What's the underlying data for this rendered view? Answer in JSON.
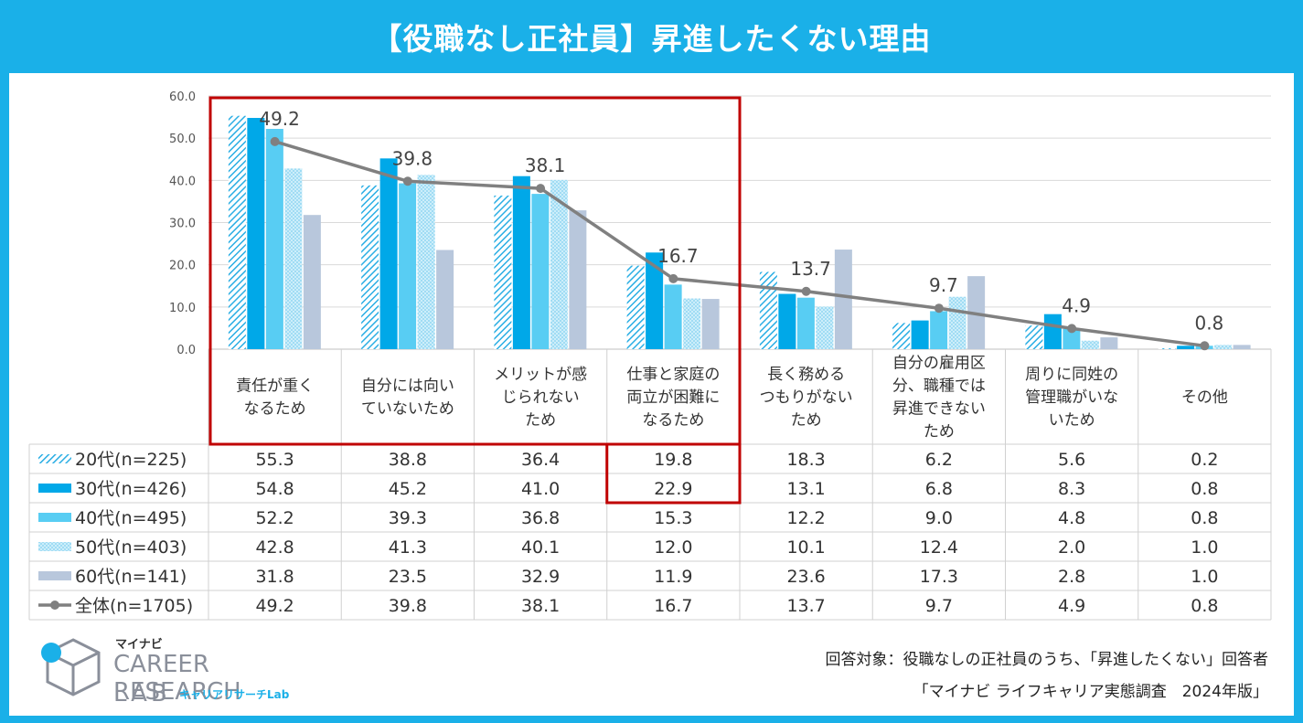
{
  "title": "【役職なし正社員】昇進したくない理由",
  "footnote_1": "回答対象：役職なしの正社員のうち、「昇進したくない」回答者",
  "footnote_2": "「マイナビ ライフキャリア実態調査　2024年版」",
  "logo": {
    "brand": "マイナビ",
    "line1": "CAREER RESEARCH",
    "line2": "LAB",
    "sub": "キャリアリサーチLab"
  },
  "colors": {
    "header": "#1ab0e8",
    "s20": "#3fb7e6",
    "s30": "#00a8e8",
    "s40": "#58cdf3",
    "s50": "#a9ddf3",
    "s60": "#b8c7dc",
    "total": "#808080",
    "highlight": "#c00000",
    "grid": "#d9d9d9"
  },
  "chart_data": {
    "type": "bar",
    "title": "【役職なし正社員】昇進したくない理由",
    "ylim": [
      0,
      60
    ],
    "yticks": [
      "0.0",
      "10.0",
      "20.0",
      "30.0",
      "40.0",
      "50.0",
      "60.0"
    ],
    "categories": [
      [
        "責任が重く",
        "なるため"
      ],
      [
        "自分には向い",
        "ていないため"
      ],
      [
        "メリットが感",
        "じられない",
        "ため"
      ],
      [
        "仕事と家庭の",
        "両立が困難に",
        "なるため"
      ],
      [
        "長く務める",
        "つもりがない",
        "ため"
      ],
      [
        "自分の雇用区",
        "分、職種では",
        "昇進できない",
        "ため"
      ],
      [
        "周りに同姓の",
        "管理職がいな",
        "いため"
      ],
      [
        "その他"
      ]
    ],
    "series": [
      {
        "name": "20代(n=225)",
        "type": "bar",
        "pattern": "hatch",
        "values": [
          55.3,
          38.8,
          36.4,
          19.8,
          18.3,
          6.2,
          5.6,
          0.2
        ]
      },
      {
        "name": "30代(n=426)",
        "type": "bar",
        "pattern": "solid",
        "values": [
          54.8,
          45.2,
          41.0,
          22.9,
          13.1,
          6.8,
          8.3,
          0.8
        ]
      },
      {
        "name": "40代(n=495)",
        "type": "bar",
        "pattern": "solid-light",
        "values": [
          52.2,
          39.3,
          36.8,
          15.3,
          12.2,
          9.0,
          4.8,
          0.8
        ]
      },
      {
        "name": "50代(n=403)",
        "type": "bar",
        "pattern": "dots",
        "values": [
          42.8,
          41.3,
          40.1,
          12.0,
          10.1,
          12.4,
          2.0,
          1.0
        ]
      },
      {
        "name": "60代(n=141)",
        "type": "bar",
        "pattern": "solid-grey",
        "values": [
          31.8,
          23.5,
          32.9,
          11.9,
          23.6,
          17.3,
          2.8,
          1.0
        ]
      },
      {
        "name": "全体(n=1705)",
        "type": "line",
        "values": [
          49.2,
          39.8,
          38.1,
          16.7,
          13.7,
          9.7,
          4.9,
          0.8
        ]
      }
    ],
    "table_values": [
      [
        "55.3",
        "38.8",
        "36.4",
        "19.8",
        "18.3",
        "6.2",
        "5.6",
        "0.2"
      ],
      [
        "54.8",
        "45.2",
        "41.0",
        "22.9",
        "13.1",
        "6.8",
        "8.3",
        "0.8"
      ],
      [
        "52.2",
        "39.3",
        "36.8",
        "15.3",
        "12.2",
        "9.0",
        "4.8",
        "0.8"
      ],
      [
        "42.8",
        "41.3",
        "40.1",
        "12.0",
        "10.1",
        "12.4",
        "2.0",
        "1.0"
      ],
      [
        "31.8",
        "23.5",
        "32.9",
        "11.9",
        "23.6",
        "17.3",
        "2.8",
        "1.0"
      ],
      [
        "49.2",
        "39.8",
        "38.1",
        "16.7",
        "13.7",
        "9.7",
        "4.9",
        "0.8"
      ]
    ],
    "line_labels": [
      "49.2",
      "39.8",
      "38.1",
      "16.7",
      "13.7",
      "9.7",
      "4.9",
      "0.8"
    ]
  }
}
